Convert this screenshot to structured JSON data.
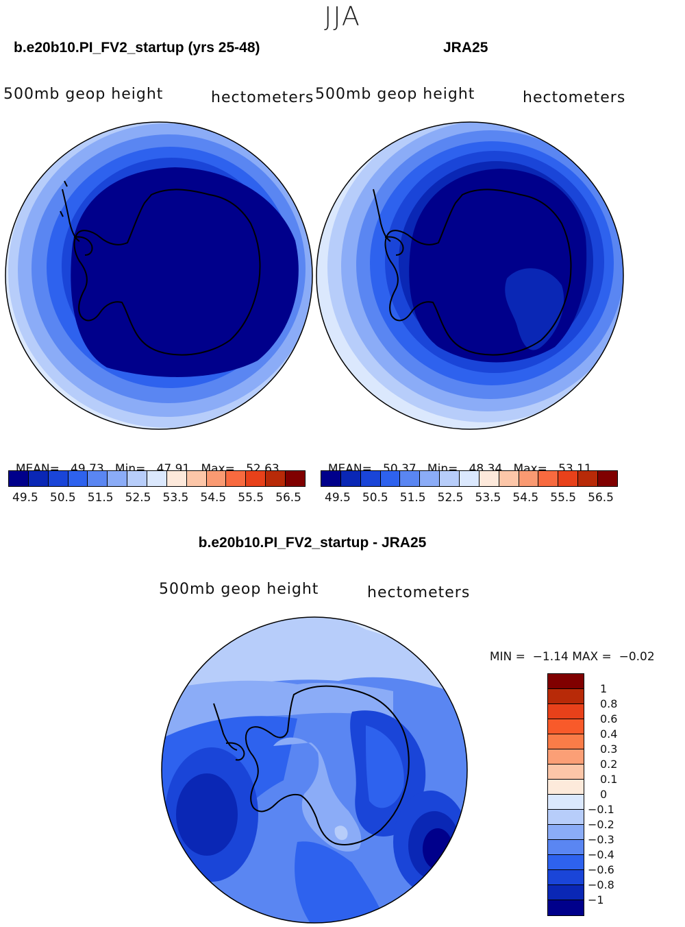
{
  "season": "JJA",
  "panels": [
    {
      "title": "b.e20b10.PI_FV2_startup (yrs 25-48)",
      "variable": "500mb geop height",
      "units": "hectometers",
      "stats": {
        "mean_label": "MEAN=",
        "mean": "49.73",
        "min_label": "Min=",
        "min": "47.91",
        "max_label": "Max=",
        "max": "52.63"
      }
    },
    {
      "title": "JRA25",
      "variable": "500mb geop height",
      "units": "hectometers",
      "stats": {
        "mean_label": "MEAN=",
        "mean": "50.37",
        "min_label": "Min=",
        "min": "48.34",
        "max_label": "Max=",
        "max": "53.11"
      }
    }
  ],
  "abs_colorbar": {
    "labels": [
      "49.5",
      "50.5",
      "51.5",
      "52.5",
      "53.5",
      "54.5",
      "55.5",
      "56.5"
    ],
    "colors": [
      "#00008b",
      "#0a27b5",
      "#1a45d8",
      "#2e62ee",
      "#5a86f2",
      "#8bacf7",
      "#b7cdfa",
      "#dbe8fd",
      "#fde9db",
      "#fcc6a8",
      "#fa9a72",
      "#f86a3f",
      "#e8411a",
      "#b82a08",
      "#800000"
    ]
  },
  "diff": {
    "title": "b.e20b10.PI_FV2_startup - JRA25",
    "variable": "500mb geop height",
    "units": "hectometers",
    "min_label": "MIN =",
    "min": "−1.14",
    "max_label": "MAX =",
    "max": "−0.02",
    "colorbar_labels": [
      "1",
      "0.8",
      "0.6",
      "0.4",
      "0.3",
      "0.2",
      "0.1",
      "0",
      "−0.1",
      "−0.2",
      "−0.3",
      "−0.4",
      "−0.6",
      "−0.8",
      "−1"
    ],
    "colorbar_colors": [
      "#800000",
      "#b82a08",
      "#e8411a",
      "#f85a2a",
      "#fa7c48",
      "#fb9f76",
      "#fcc6a8",
      "#fdeadb",
      "#dbe8fd",
      "#b7cdfa",
      "#8bacf7",
      "#5a86f2",
      "#2e62ee",
      "#1a45d8",
      "#0a27b5",
      "#00008b"
    ]
  }
}
